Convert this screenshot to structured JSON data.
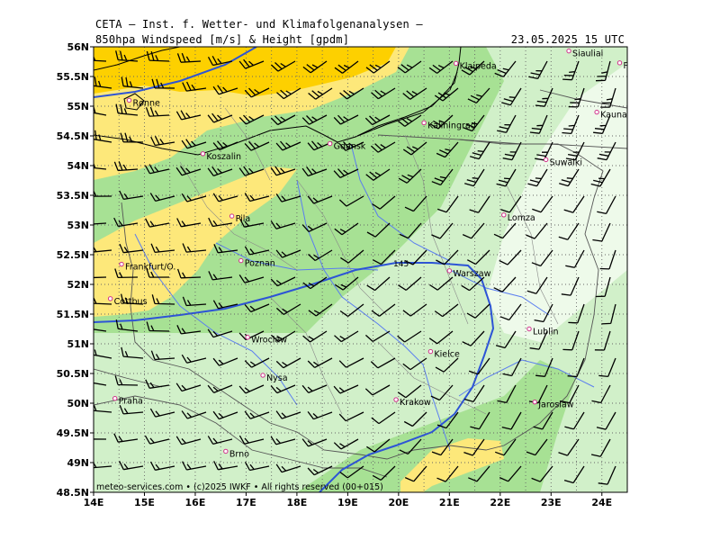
{
  "header": {
    "line1": "CETA — Inst. f. Wetter- und Klimafolgenanalysen —",
    "line2": "850hpa Windspeed [m/s] & Height [gpdm]",
    "valid": "23.05.2025 15 UTC"
  },
  "axes": {
    "lon_labels": [
      "14E",
      "15E",
      "16E",
      "17E",
      "18E",
      "19E",
      "20E",
      "21E",
      "22E",
      "23E",
      "24E"
    ],
    "lat_labels": [
      "56N",
      "55.5N",
      "55N",
      "54.5N",
      "54N",
      "53.5N",
      "53N",
      "52.5N",
      "52N",
      "51.5N",
      "51N",
      "50.5N",
      "50N",
      "49.5N",
      "49N",
      "48.5N"
    ]
  },
  "contour": {
    "label": "145"
  },
  "cities": [
    {
      "name": "Siauliai",
      "lon": 23.35,
      "lat": 55.93
    },
    {
      "name": "Panevezys",
      "lon": 24.35,
      "lat": 55.73
    },
    {
      "name": "Klaipeda",
      "lon": 21.13,
      "lat": 55.72
    },
    {
      "name": "Kaunas",
      "lon": 23.9,
      "lat": 54.9
    },
    {
      "name": "Rønne",
      "lon": 14.7,
      "lat": 55.1
    },
    {
      "name": "Kaliningrad",
      "lon": 20.5,
      "lat": 54.72
    },
    {
      "name": "Gdansk",
      "lon": 18.65,
      "lat": 54.37
    },
    {
      "name": "Koszalin",
      "lon": 16.15,
      "lat": 54.2
    },
    {
      "name": "Suwalki",
      "lon": 22.9,
      "lat": 54.1
    },
    {
      "name": "Pila",
      "lon": 16.72,
      "lat": 53.15
    },
    {
      "name": "Lomza",
      "lon": 22.07,
      "lat": 53.17
    },
    {
      "name": "Frankfurt/O.",
      "lon": 14.55,
      "lat": 52.34
    },
    {
      "name": "Poznan",
      "lon": 16.9,
      "lat": 52.4
    },
    {
      "name": "Warszaw",
      "lon": 21.0,
      "lat": 52.23
    },
    {
      "name": "Cottbus",
      "lon": 14.33,
      "lat": 51.76
    },
    {
      "name": "Lublin",
      "lon": 22.57,
      "lat": 51.25
    },
    {
      "name": "Wroclaw",
      "lon": 17.03,
      "lat": 51.11
    },
    {
      "name": "Kielce",
      "lon": 20.63,
      "lat": 50.87
    },
    {
      "name": "Nysa",
      "lon": 17.33,
      "lat": 50.47
    },
    {
      "name": "Praha",
      "lon": 14.42,
      "lat": 50.08
    },
    {
      "name": "Krakow",
      "lon": 19.95,
      "lat": 50.06
    },
    {
      "name": "Jaroslaw",
      "lon": 22.68,
      "lat": 50.02
    },
    {
      "name": "Brno",
      "lon": 16.6,
      "lat": 49.19
    }
  ],
  "credit": "meteo-services.com • (c)2025 IWKF • All rights reserved (00+015)",
  "colors": {
    "speed_lt_10": "#eefaea",
    "speed_10_15": "#d1f0c9",
    "speed_15_20": "#a7e194",
    "speed_20_25": "#fde87a",
    "speed_gt_25": "#fdd000",
    "height_contour": "#2d54d6",
    "rivers": "#5a7df0",
    "borders": "#555555",
    "coast": "#000000",
    "city_marker": "#d0308a"
  }
}
